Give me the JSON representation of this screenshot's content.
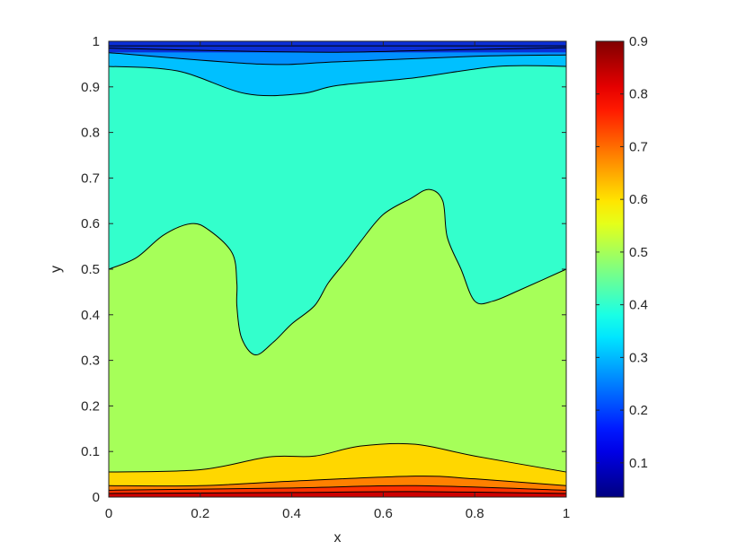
{
  "chart_data": {
    "type": "contour",
    "xlabel": "x",
    "ylabel": "y",
    "xlim": [
      0,
      1
    ],
    "ylim": [
      0,
      1
    ],
    "xticks": [
      "0",
      "0.2",
      "0.4",
      "0.6",
      "0.8",
      "1"
    ],
    "yticks": [
      "0",
      "0.1",
      "0.2",
      "0.3",
      "0.4",
      "0.5",
      "0.6",
      "0.7",
      "0.8",
      "0.9",
      "1"
    ],
    "grid": false,
    "colormap": "jet",
    "colorbar": {
      "range": [
        0.035,
        0.9
      ],
      "ticks": [
        "0.1",
        "0.2",
        "0.3",
        "0.4",
        "0.5",
        "0.6",
        "0.7",
        "0.8",
        "0.9"
      ],
      "tick_values": [
        0.1,
        0.2,
        0.3,
        0.4,
        0.5,
        0.6,
        0.7,
        0.8,
        0.9
      ]
    },
    "regions": [
      {
        "name": "band-blue-dark",
        "color": "#0b2fd6",
        "lower_contour": 0.975,
        "upper_contour": 0.99
      },
      {
        "name": "band-blue",
        "color": "#0090ff",
        "lower_contour": 0.965,
        "upper_contour": 0.975
      },
      {
        "name": "band-light-blue",
        "color": "#00c0ff"
      },
      {
        "name": "band-cyan-green",
        "color": "#33ffcc"
      },
      {
        "name": "band-green-yellow",
        "color": "#a6ff59"
      },
      {
        "name": "band-yellow",
        "color": "#ffd700"
      },
      {
        "name": "band-orange",
        "color": "#ff8000"
      },
      {
        "name": "band-red",
        "color": "#ff3000"
      },
      {
        "name": "band-dark-red",
        "color": "#cc0000"
      }
    ],
    "contours": [
      {
        "name": "contour-top-1",
        "points": [
          [
            0,
            0.99
          ],
          [
            1,
            0.99
          ]
        ]
      },
      {
        "name": "contour-top-2",
        "points": [
          [
            0,
            0.985
          ],
          [
            0.3,
            0.978
          ],
          [
            0.5,
            0.976
          ],
          [
            0.7,
            0.98
          ],
          [
            1,
            0.986
          ]
        ]
      },
      {
        "name": "contour-top-3",
        "points": [
          [
            0,
            0.975
          ],
          [
            0.33,
            0.95
          ],
          [
            0.5,
            0.955
          ],
          [
            0.8,
            0.967
          ],
          [
            1,
            0.97
          ]
        ]
      },
      {
        "name": "contour-top-4",
        "points": [
          [
            0,
            0.945
          ],
          [
            0.15,
            0.935
          ],
          [
            0.3,
            0.885
          ],
          [
            0.42,
            0.885
          ],
          [
            0.5,
            0.903
          ],
          [
            0.67,
            0.92
          ],
          [
            0.85,
            0.945
          ],
          [
            1,
            0.945
          ]
        ]
      },
      {
        "name": "contour-mid",
        "points": [
          [
            0,
            0.5
          ],
          [
            0.06,
            0.525
          ],
          [
            0.12,
            0.575
          ],
          [
            0.18,
            0.6
          ],
          [
            0.22,
            0.585
          ],
          [
            0.27,
            0.535
          ],
          [
            0.28,
            0.47
          ],
          [
            0.28,
            0.42
          ],
          [
            0.29,
            0.35
          ],
          [
            0.32,
            0.312
          ],
          [
            0.36,
            0.34
          ],
          [
            0.4,
            0.38
          ],
          [
            0.45,
            0.42
          ],
          [
            0.48,
            0.47
          ],
          [
            0.52,
            0.52
          ],
          [
            0.55,
            0.56
          ],
          [
            0.6,
            0.62
          ],
          [
            0.66,
            0.655
          ],
          [
            0.7,
            0.675
          ],
          [
            0.73,
            0.65
          ],
          [
            0.74,
            0.57
          ],
          [
            0.77,
            0.5
          ],
          [
            0.8,
            0.43
          ],
          [
            0.84,
            0.43
          ],
          [
            0.9,
            0.455
          ],
          [
            1,
            0.5
          ]
        ]
      },
      {
        "name": "contour-bottom-1",
        "points": [
          [
            0,
            0.055
          ],
          [
            0.2,
            0.06
          ],
          [
            0.35,
            0.088
          ],
          [
            0.45,
            0.09
          ],
          [
            0.55,
            0.112
          ],
          [
            0.67,
            0.116
          ],
          [
            0.8,
            0.09
          ],
          [
            1,
            0.055
          ]
        ]
      },
      {
        "name": "contour-bottom-2",
        "points": [
          [
            0,
            0.025
          ],
          [
            0.2,
            0.025
          ],
          [
            0.4,
            0.035
          ],
          [
            0.67,
            0.046
          ],
          [
            0.8,
            0.04
          ],
          [
            1,
            0.025
          ]
        ]
      },
      {
        "name": "contour-bottom-3",
        "points": [
          [
            0,
            0.015
          ],
          [
            0.4,
            0.02
          ],
          [
            0.67,
            0.025
          ],
          [
            1,
            0.015
          ]
        ]
      },
      {
        "name": "contour-bottom-4",
        "points": [
          [
            0,
            0.008
          ],
          [
            0.4,
            0.01
          ],
          [
            0.67,
            0.012
          ],
          [
            1,
            0.008
          ]
        ]
      }
    ]
  }
}
